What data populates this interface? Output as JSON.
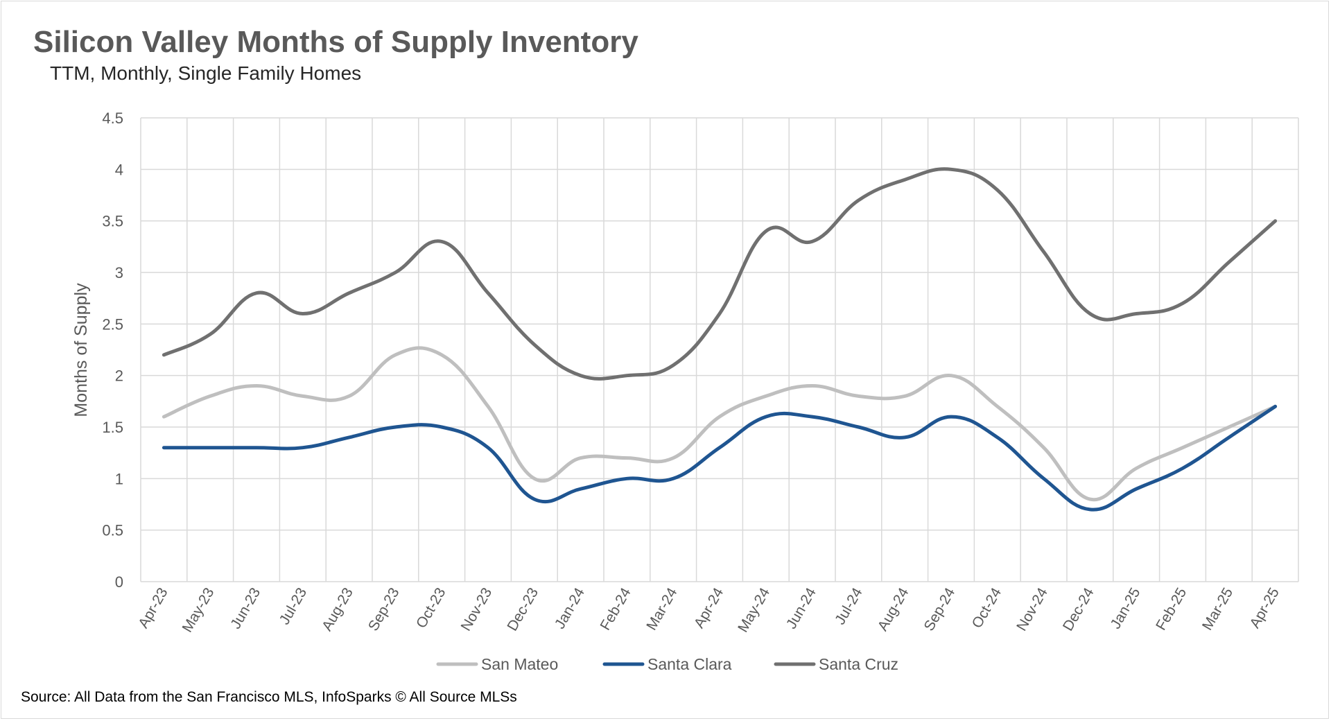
{
  "chart_data": {
    "type": "line",
    "title": "Silicon Valley Months of Supply Inventory",
    "subtitle": "TTM, Monthly, Single Family Homes",
    "xlabel": "",
    "ylabel": "Months of Supply",
    "ylim": [
      0,
      4.5
    ],
    "y_ticks": [
      "0",
      "0.5",
      "1",
      "1.5",
      "2",
      "2.5",
      "3",
      "3.5",
      "4",
      "4.5"
    ],
    "grid": true,
    "legend_position": "bottom",
    "categories": [
      "Apr-23",
      "May-23",
      "Jun-23",
      "Jul-23",
      "Aug-23",
      "Sep-23",
      "Oct-23",
      "Nov-23",
      "Dec-23",
      "Jan-24",
      "Feb-24",
      "Mar-24",
      "Apr-24",
      "May-24",
      "Jun-24",
      "Jul-24",
      "Aug-24",
      "Sep-24",
      "Oct-24",
      "Nov-24",
      "Dec-24",
      "Jan-25",
      "Feb-25",
      "Mar-25",
      "Apr-25"
    ],
    "series": [
      {
        "name": "San Mateo",
        "color": "#bfbfbf",
        "values": [
          1.6,
          1.8,
          1.9,
          1.8,
          1.8,
          2.2,
          2.2,
          1.7,
          1.0,
          1.2,
          1.2,
          1.2,
          1.6,
          1.8,
          1.9,
          1.8,
          1.8,
          2.0,
          1.7,
          1.3,
          0.8,
          1.1,
          1.3,
          1.5,
          1.7
        ]
      },
      {
        "name": "Santa Clara",
        "color": "#1f5591",
        "values": [
          1.3,
          1.3,
          1.3,
          1.3,
          1.4,
          1.5,
          1.5,
          1.3,
          0.8,
          0.9,
          1.0,
          1.0,
          1.3,
          1.6,
          1.6,
          1.5,
          1.4,
          1.6,
          1.4,
          1.0,
          0.7,
          0.9,
          1.1,
          1.4,
          1.7
        ]
      },
      {
        "name": "Santa Cruz",
        "color": "#707070",
        "values": [
          2.2,
          2.4,
          2.8,
          2.6,
          2.8,
          3.0,
          3.3,
          2.8,
          2.3,
          2.0,
          2.0,
          2.1,
          2.6,
          3.4,
          3.3,
          3.7,
          3.9,
          4.0,
          3.8,
          3.2,
          2.6,
          2.6,
          2.7,
          3.1,
          3.5
        ]
      }
    ],
    "source": "Source: All Data from the San Francisco MLS, InfoSparks © All Source MLSs"
  }
}
